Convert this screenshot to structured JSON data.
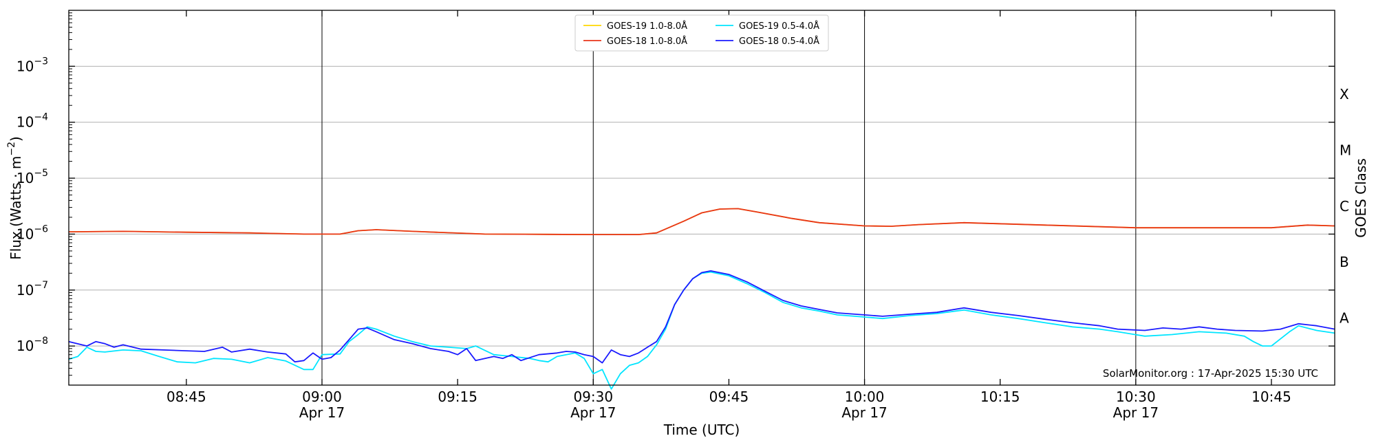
{
  "chart_data": {
    "type": "line",
    "xlabel": "Time (UTC)",
    "ylabel": "Flux (Watts · m",
    "ylabel_sup": "−2",
    "ylabel_close": ")",
    "y2label": "GOES Class",
    "scale_y": "log",
    "ylim": [
      2e-09,
      0.01
    ],
    "xlim": [
      "08:32",
      "10:52"
    ],
    "grid": "horizontal at decades",
    "legend_position": "top-center",
    "x_ticks": [
      {
        "time": "08:45",
        "label": "08:45",
        "sublabel": ""
      },
      {
        "time": "09:00",
        "label": "09:00",
        "sublabel": "Apr 17"
      },
      {
        "time": "09:15",
        "label": "09:15",
        "sublabel": ""
      },
      {
        "time": "09:30",
        "label": "09:30",
        "sublabel": "Apr 17"
      },
      {
        "time": "09:45",
        "label": "09:45",
        "sublabel": ""
      },
      {
        "time": "10:00",
        "label": "10:00",
        "sublabel": "Apr 17"
      },
      {
        "time": "10:15",
        "label": "10:15",
        "sublabel": ""
      },
      {
        "time": "10:30",
        "label": "10:30",
        "sublabel": "Apr 17"
      },
      {
        "time": "10:45",
        "label": "10:45",
        "sublabel": ""
      }
    ],
    "vertical_lines": [
      "09:00",
      "09:30",
      "10:00",
      "10:30"
    ],
    "y_ticks": [
      {
        "value": 1e-08,
        "base": "10",
        "exp": "−8"
      },
      {
        "value": 1e-07,
        "base": "10",
        "exp": "−7"
      },
      {
        "value": 1e-06,
        "base": "10",
        "exp": "−6"
      },
      {
        "value": 1e-05,
        "base": "10",
        "exp": "−5"
      },
      {
        "value": 0.0001,
        "base": "10",
        "exp": "−4"
      },
      {
        "value": 0.001,
        "base": "10",
        "exp": "−3"
      }
    ],
    "goes_classes": [
      {
        "label": "A",
        "value": 3.16e-08
      },
      {
        "label": "B",
        "value": 3.16e-07
      },
      {
        "label": "C",
        "value": 3.16e-06
      },
      {
        "label": "M",
        "value": 3.16e-05
      },
      {
        "label": "X",
        "value": 0.000316
      }
    ],
    "series": [
      {
        "name": "GOES-19 1.0-8.0Å",
        "color": "#ffd700",
        "points": [
          [
            "08:32",
            1.1e-06
          ],
          [
            "08:38",
            1.12e-06
          ],
          [
            "08:45",
            1.08e-06
          ],
          [
            "08:52",
            1.05e-06
          ],
          [
            "08:58",
            1e-06
          ],
          [
            "09:02",
            1e-06
          ],
          [
            "09:04",
            1.15e-06
          ],
          [
            "09:06",
            1.2e-06
          ],
          [
            "09:10",
            1.12e-06
          ],
          [
            "09:18",
            1e-06
          ],
          [
            "09:25",
            9.9e-07
          ],
          [
            "09:30",
            9.8e-07
          ],
          [
            "09:35",
            9.8e-07
          ],
          [
            "09:37",
            1.05e-06
          ],
          [
            "09:40",
            1.7e-06
          ],
          [
            "09:42",
            2.4e-06
          ],
          [
            "09:44",
            2.8e-06
          ],
          [
            "09:46",
            2.85e-06
          ],
          [
            "09:48",
            2.5e-06
          ],
          [
            "09:52",
            1.9e-06
          ],
          [
            "09:55",
            1.6e-06
          ],
          [
            "10:00",
            1.4e-06
          ],
          [
            "10:03",
            1.38e-06
          ],
          [
            "10:06",
            1.48e-06
          ],
          [
            "10:11",
            1.6e-06
          ],
          [
            "10:20",
            1.45e-06
          ],
          [
            "10:30",
            1.3e-06
          ],
          [
            "10:35",
            1.3e-06
          ],
          [
            "10:45",
            1.3e-06
          ],
          [
            "10:49",
            1.45e-06
          ],
          [
            "10:52",
            1.4e-06
          ]
        ]
      },
      {
        "name": "GOES-18 1.0-8.0Å",
        "color": "#e8351a",
        "points": [
          [
            "08:32",
            1.1e-06
          ],
          [
            "08:38",
            1.12e-06
          ],
          [
            "08:45",
            1.08e-06
          ],
          [
            "08:52",
            1.05e-06
          ],
          [
            "08:58",
            1e-06
          ],
          [
            "09:02",
            1e-06
          ],
          [
            "09:04",
            1.15e-06
          ],
          [
            "09:06",
            1.2e-06
          ],
          [
            "09:10",
            1.12e-06
          ],
          [
            "09:18",
            1e-06
          ],
          [
            "09:25",
            9.9e-07
          ],
          [
            "09:30",
            9.8e-07
          ],
          [
            "09:35",
            9.8e-07
          ],
          [
            "09:37",
            1.05e-06
          ],
          [
            "09:40",
            1.7e-06
          ],
          [
            "09:42",
            2.4e-06
          ],
          [
            "09:44",
            2.8e-06
          ],
          [
            "09:46",
            2.85e-06
          ],
          [
            "09:48",
            2.5e-06
          ],
          [
            "09:52",
            1.9e-06
          ],
          [
            "09:55",
            1.6e-06
          ],
          [
            "10:00",
            1.4e-06
          ],
          [
            "10:03",
            1.38e-06
          ],
          [
            "10:06",
            1.48e-06
          ],
          [
            "10:11",
            1.6e-06
          ],
          [
            "10:20",
            1.45e-06
          ],
          [
            "10:30",
            1.3e-06
          ],
          [
            "10:35",
            1.3e-06
          ],
          [
            "10:45",
            1.3e-06
          ],
          [
            "10:49",
            1.45e-06
          ],
          [
            "10:52",
            1.4e-06
          ]
        ]
      },
      {
        "name": "GOES-19 0.5-4.0Å",
        "color": "#00e5ff",
        "points": [
          [
            "08:32",
            5.8e-09
          ],
          [
            "08:33",
            6.5e-09
          ],
          [
            "08:34",
            9.5e-09
          ],
          [
            "08:35",
            8e-09
          ],
          [
            "08:36",
            7.8e-09
          ],
          [
            "08:38",
            8.5e-09
          ],
          [
            "08:40",
            8.2e-09
          ],
          [
            "08:42",
            6.5e-09
          ],
          [
            "08:44",
            5.2e-09
          ],
          [
            "08:46",
            5e-09
          ],
          [
            "08:48",
            6e-09
          ],
          [
            "08:50",
            5.8e-09
          ],
          [
            "08:52",
            5e-09
          ],
          [
            "08:54",
            6.2e-09
          ],
          [
            "08:56",
            5.4e-09
          ],
          [
            "08:58",
            3.8e-09
          ],
          [
            "08:59",
            3.8e-09
          ],
          [
            "09:00",
            7e-09
          ],
          [
            "09:02",
            7.2e-09
          ],
          [
            "09:03",
            1.2e-08
          ],
          [
            "09:04",
            1.6e-08
          ],
          [
            "09:05",
            2.2e-08
          ],
          [
            "09:06",
            2e-08
          ],
          [
            "09:08",
            1.5e-08
          ],
          [
            "09:10",
            1.2e-08
          ],
          [
            "09:12",
            1e-08
          ],
          [
            "09:14",
            9.5e-09
          ],
          [
            "09:16",
            9e-09
          ],
          [
            "09:17",
            1e-08
          ],
          [
            "09:19",
            7e-09
          ],
          [
            "09:21",
            6.5e-09
          ],
          [
            "09:23",
            6e-09
          ],
          [
            "09:24",
            5.5e-09
          ],
          [
            "09:25",
            5.2e-09
          ],
          [
            "09:26",
            6.5e-09
          ],
          [
            "09:28",
            7.5e-09
          ],
          [
            "09:29",
            6e-09
          ],
          [
            "09:30",
            3.2e-09
          ],
          [
            "09:31",
            3.8e-09
          ],
          [
            "09:32",
            1.7e-09
          ],
          [
            "09:33",
            3.2e-09
          ],
          [
            "09:34",
            4.5e-09
          ],
          [
            "09:35",
            5e-09
          ],
          [
            "09:36",
            6.5e-09
          ],
          [
            "09:37",
            1.05e-08
          ],
          [
            "09:38",
            2e-08
          ],
          [
            "09:39",
            5.5e-08
          ],
          [
            "09:40",
            1e-07
          ],
          [
            "09:41",
            1.6e-07
          ],
          [
            "09:42",
            2e-07
          ],
          [
            "09:43",
            2.1e-07
          ],
          [
            "09:45",
            1.8e-07
          ],
          [
            "09:47",
            1.3e-07
          ],
          [
            "09:49",
            9e-08
          ],
          [
            "09:51",
            6e-08
          ],
          [
            "09:53",
            4.8e-08
          ],
          [
            "09:55",
            4.2e-08
          ],
          [
            "09:57",
            3.6e-08
          ],
          [
            "10:00",
            3.3e-08
          ],
          [
            "10:02",
            3.1e-08
          ],
          [
            "10:05",
            3.5e-08
          ],
          [
            "10:08",
            3.8e-08
          ],
          [
            "10:11",
            4.4e-08
          ],
          [
            "10:14",
            3.6e-08
          ],
          [
            "10:17",
            3.1e-08
          ],
          [
            "10:20",
            2.6e-08
          ],
          [
            "10:23",
            2.2e-08
          ],
          [
            "10:26",
            2e-08
          ],
          [
            "10:28",
            1.8e-08
          ],
          [
            "10:31",
            1.5e-08
          ],
          [
            "10:34",
            1.6e-08
          ],
          [
            "10:37",
            1.8e-08
          ],
          [
            "10:40",
            1.7e-08
          ],
          [
            "10:42",
            1.5e-08
          ],
          [
            "10:43",
            1.2e-08
          ],
          [
            "10:44",
            1e-08
          ],
          [
            "10:45",
            1e-08
          ],
          [
            "10:47",
            1.8e-08
          ],
          [
            "10:48",
            2.3e-08
          ],
          [
            "10:50",
            1.9e-08
          ],
          [
            "10:52",
            1.7e-08
          ]
        ]
      },
      {
        "name": "GOES-18 0.5-4.0Å",
        "color": "#1a1aff",
        "points": [
          [
            "08:32",
            1.2e-08
          ],
          [
            "08:34",
            1e-08
          ],
          [
            "08:35",
            1.2e-08
          ],
          [
            "08:36",
            1.1e-08
          ],
          [
            "08:37",
            9.5e-09
          ],
          [
            "08:38",
            1.05e-08
          ],
          [
            "08:40",
            8.8e-09
          ],
          [
            "08:45",
            8.2e-09
          ],
          [
            "08:47",
            8e-09
          ],
          [
            "08:49",
            9.5e-09
          ],
          [
            "08:50",
            7.8e-09
          ],
          [
            "08:52",
            8.8e-09
          ],
          [
            "08:54",
            7.8e-09
          ],
          [
            "08:56",
            7.2e-09
          ],
          [
            "08:57",
            5.2e-09
          ],
          [
            "08:58",
            5.5e-09
          ],
          [
            "08:59",
            7.5e-09
          ],
          [
            "09:00",
            5.8e-09
          ],
          [
            "09:01",
            6.2e-09
          ],
          [
            "09:02",
            8.5e-09
          ],
          [
            "09:03",
            1.3e-08
          ],
          [
            "09:04",
            2e-08
          ],
          [
            "09:05",
            2.1e-08
          ],
          [
            "09:06",
            1.8e-08
          ],
          [
            "09:08",
            1.3e-08
          ],
          [
            "09:10",
            1.1e-08
          ],
          [
            "09:12",
            9e-09
          ],
          [
            "09:14",
            8e-09
          ],
          [
            "09:15",
            7e-09
          ],
          [
            "09:16",
            9e-09
          ],
          [
            "09:17",
            5.5e-09
          ],
          [
            "09:19",
            6.5e-09
          ],
          [
            "09:20",
            6e-09
          ],
          [
            "09:21",
            7e-09
          ],
          [
            "09:22",
            5.5e-09
          ],
          [
            "09:24",
            7e-09
          ],
          [
            "09:26",
            7.5e-09
          ],
          [
            "09:27",
            8e-09
          ],
          [
            "09:28",
            7.8e-09
          ],
          [
            "09:29",
            7e-09
          ],
          [
            "09:30",
            6.5e-09
          ],
          [
            "09:31",
            5e-09
          ],
          [
            "09:32",
            8.5e-09
          ],
          [
            "09:33",
            7e-09
          ],
          [
            "09:34",
            6.5e-09
          ],
          [
            "09:35",
            7.5e-09
          ],
          [
            "09:36",
            9.5e-09
          ],
          [
            "09:37",
            1.2e-08
          ],
          [
            "09:38",
            2.2e-08
          ],
          [
            "09:39",
            5.5e-08
          ],
          [
            "09:40",
            1e-07
          ],
          [
            "09:41",
            1.6e-07
          ],
          [
            "09:42",
            2.05e-07
          ],
          [
            "09:43",
            2.2e-07
          ],
          [
            "09:45",
            1.9e-07
          ],
          [
            "09:47",
            1.4e-07
          ],
          [
            "09:49",
            9.5e-08
          ],
          [
            "09:51",
            6.5e-08
          ],
          [
            "09:53",
            5.2e-08
          ],
          [
            "09:55",
            4.5e-08
          ],
          [
            "09:57",
            3.9e-08
          ],
          [
            "10:00",
            3.6e-08
          ],
          [
            "10:02",
            3.4e-08
          ],
          [
            "10:05",
            3.7e-08
          ],
          [
            "10:08",
            4e-08
          ],
          [
            "10:11",
            4.8e-08
          ],
          [
            "10:14",
            4e-08
          ],
          [
            "10:17",
            3.5e-08
          ],
          [
            "10:20",
            3e-08
          ],
          [
            "10:23",
            2.6e-08
          ],
          [
            "10:26",
            2.3e-08
          ],
          [
            "10:28",
            2e-08
          ],
          [
            "10:31",
            1.9e-08
          ],
          [
            "10:33",
            2.1e-08
          ],
          [
            "10:35",
            2e-08
          ],
          [
            "10:37",
            2.2e-08
          ],
          [
            "10:39",
            2e-08
          ],
          [
            "10:41",
            1.9e-08
          ],
          [
            "10:44",
            1.85e-08
          ],
          [
            "10:46",
            2e-08
          ],
          [
            "10:48",
            2.5e-08
          ],
          [
            "10:50",
            2.3e-08
          ],
          [
            "10:52",
            2e-08
          ]
        ]
      }
    ],
    "annotation": "SolarMonitor.org : 17-Apr-2025 15:30 UTC"
  }
}
